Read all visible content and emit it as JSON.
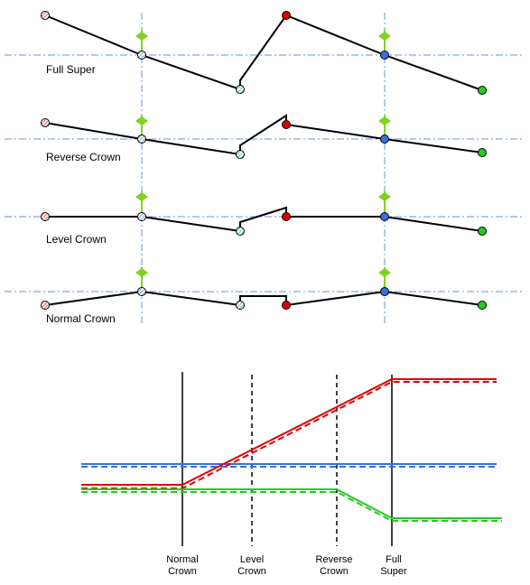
{
  "sections": [
    {
      "id": "full-super",
      "label": "Full Super"
    },
    {
      "id": "reverse-crown",
      "label": "Reverse Crown"
    },
    {
      "id": "level-crown",
      "label": "Level Crown"
    },
    {
      "id": "normal-crown",
      "label": "Normal Crown"
    }
  ],
  "transition": {
    "stations": [
      {
        "line1": "Normal",
        "line2": "Crown"
      },
      {
        "line1": "Level",
        "line2": "Crown"
      },
      {
        "line1": "Reverse",
        "line2": "Crown"
      },
      {
        "line1": "Full",
        "line2": "Super"
      }
    ]
  },
  "colors": {
    "red": "#e00000",
    "blue": "#3a6fe0",
    "green": "#22cc22",
    "marker_green": "#7ed321",
    "hatch_red": "#e04040",
    "hatch_blue": "#6a8fd0",
    "hatch_green": "#3cbf6c",
    "guide": "#6a96c8"
  }
}
